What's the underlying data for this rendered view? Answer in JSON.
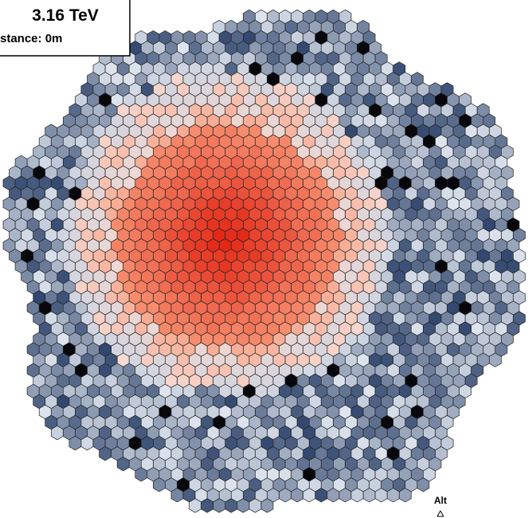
{
  "labels": {
    "energy": "3.16 TeV",
    "distance": "stance: 0m"
  },
  "compass": {
    "alt": "Alt"
  }
}
